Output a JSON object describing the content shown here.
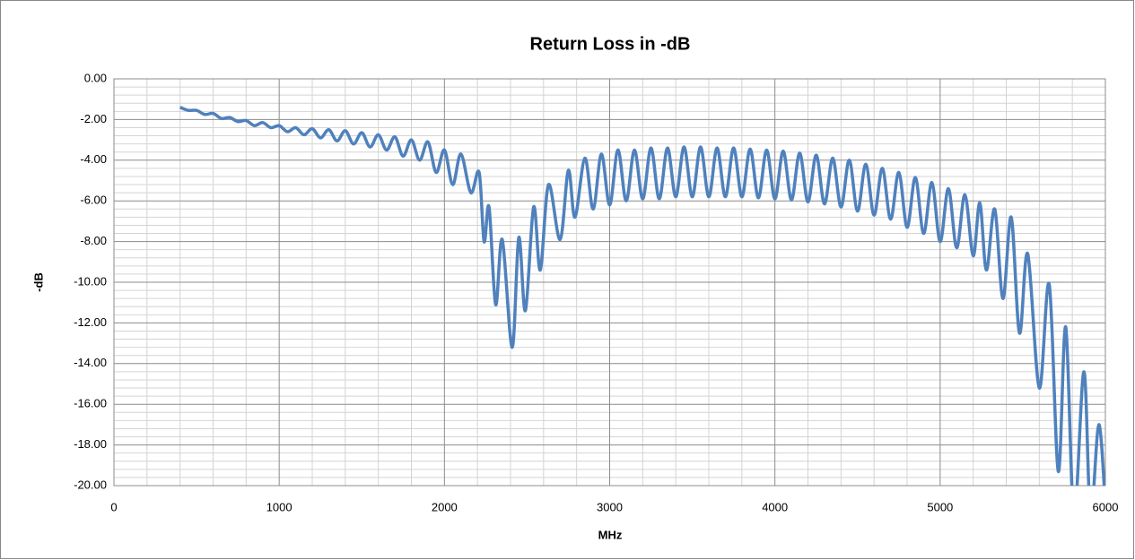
{
  "chart_data": {
    "type": "line",
    "title": "Return Loss in -dB",
    "x_label": "MHz",
    "y_label": "-dB",
    "x": [
      400,
      450,
      500,
      550,
      600,
      650,
      700,
      750,
      800,
      850,
      900,
      950,
      1000,
      1050,
      1100,
      1150,
      1200,
      1250,
      1300,
      1350,
      1400,
      1450,
      1500,
      1550,
      1600,
      1650,
      1700,
      1750,
      1800,
      1850,
      1900,
      1950,
      2000,
      2050,
      2100,
      2160,
      2210,
      2240,
      2270,
      2310,
      2350,
      2410,
      2450,
      2490,
      2540,
      2580,
      2630,
      2700,
      2750,
      2790,
      2850,
      2900,
      2950,
      3000,
      3050,
      3100,
      3150,
      3200,
      3250,
      3300,
      3350,
      3400,
      3450,
      3500,
      3550,
      3600,
      3650,
      3700,
      3750,
      3800,
      3850,
      3900,
      3950,
      4000,
      4050,
      4100,
      4150,
      4200,
      4250,
      4300,
      4350,
      4400,
      4450,
      4500,
      4550,
      4600,
      4650,
      4700,
      4750,
      4800,
      4850,
      4900,
      4950,
      5000,
      5050,
      5100,
      5150,
      5200,
      5240,
      5280,
      5330,
      5380,
      5430,
      5480,
      5530,
      5600,
      5660,
      5715,
      5760,
      5810,
      5870,
      5910,
      5960,
      6000
    ],
    "series": [
      {
        "name": "Return Loss",
        "color": "#4f81bd",
        "values": [
          -1.4,
          -1.55,
          -1.55,
          -1.75,
          -1.7,
          -1.95,
          -1.9,
          -2.1,
          -2.05,
          -2.3,
          -2.15,
          -2.4,
          -2.3,
          -2.6,
          -2.4,
          -2.75,
          -2.45,
          -2.9,
          -2.5,
          -3.05,
          -2.55,
          -3.2,
          -2.65,
          -3.35,
          -2.75,
          -3.5,
          -2.85,
          -3.8,
          -3.0,
          -4.0,
          -3.1,
          -4.6,
          -3.5,
          -5.2,
          -3.7,
          -5.6,
          -4.6,
          -8.0,
          -6.3,
          -11.1,
          -7.9,
          -13.2,
          -7.8,
          -11.4,
          -6.3,
          -9.4,
          -5.2,
          -7.9,
          -4.5,
          -6.8,
          -3.9,
          -6.4,
          -3.7,
          -6.2,
          -3.5,
          -6.0,
          -3.5,
          -5.9,
          -3.4,
          -5.9,
          -3.4,
          -5.8,
          -3.35,
          -5.8,
          -3.35,
          -5.8,
          -3.4,
          -5.8,
          -3.4,
          -5.8,
          -3.45,
          -5.85,
          -3.5,
          -5.9,
          -3.55,
          -5.95,
          -3.65,
          -6.05,
          -3.75,
          -6.15,
          -3.9,
          -6.3,
          -4.0,
          -6.5,
          -4.2,
          -6.7,
          -4.4,
          -6.9,
          -4.6,
          -7.3,
          -4.85,
          -7.6,
          -5.1,
          -8.0,
          -5.4,
          -8.3,
          -5.7,
          -8.7,
          -6.1,
          -9.4,
          -6.4,
          -10.8,
          -6.8,
          -12.5,
          -8.6,
          -15.2,
          -10.1,
          -19.3,
          -12.2,
          -21.5,
          -14.4,
          -21.5,
          -17.0,
          -21.0
        ]
      }
    ],
    "xlim": [
      0,
      6000
    ],
    "xticks": [
      0,
      1000,
      2000,
      3000,
      4000,
      5000,
      6000
    ],
    "ylim": [
      -20,
      0
    ],
    "yticks": [
      {
        "value": 0,
        "label": "0.00"
      },
      {
        "value": -2,
        "label": "-2.00"
      },
      {
        "value": -4,
        "label": "-4.00"
      },
      {
        "value": -6,
        "label": "-6.00"
      },
      {
        "value": -8,
        "label": "-8.00"
      },
      {
        "value": -10,
        "label": "-10.00"
      },
      {
        "value": -12,
        "label": "-12.00"
      },
      {
        "value": -14,
        "label": "-14.00"
      },
      {
        "value": -16,
        "label": "-16.00"
      },
      {
        "value": -18,
        "label": "-18.00"
      },
      {
        "value": -20,
        "label": "-20.00"
      }
    ],
    "grid": true,
    "minor_grid": true
  }
}
